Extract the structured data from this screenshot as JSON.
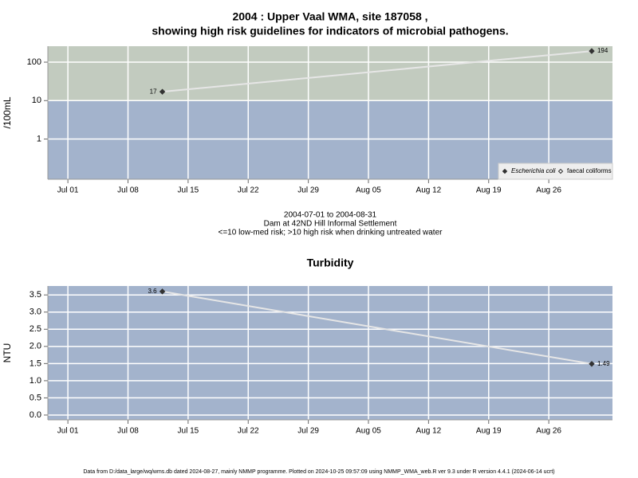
{
  "chart_data": [
    {
      "type": "line",
      "title": [
        "2004 : Upper Vaal WMA, site 187058 ,",
        "showing high risk guidelines for indicators of microbial pathogens."
      ],
      "ylabel": "/100mL",
      "log_scale": true,
      "ylim": [
        0.09,
        260
      ],
      "yticks": [
        1,
        10,
        100
      ],
      "xlim": [
        "2004-06-28T16:00",
        "2004-09-02T10:00"
      ],
      "xticks": [
        {
          "value": "2004-07-01",
          "label": "Jul 01"
        },
        {
          "value": "2004-07-08",
          "label": "Jul 08"
        },
        {
          "value": "2004-07-15",
          "label": "Jul 15"
        },
        {
          "value": "2004-07-22",
          "label": "Jul 22"
        },
        {
          "value": "2004-07-29",
          "label": "Jul 29"
        },
        {
          "value": "2004-08-05",
          "label": "Aug 05"
        },
        {
          "value": "2004-08-12",
          "label": "Aug 12"
        },
        {
          "value": "2004-08-19",
          "label": "Aug 19"
        },
        {
          "value": "2004-08-26",
          "label": "Aug 26"
        }
      ],
      "grid": true,
      "threshold": 10,
      "above_color": "#c2cbbf",
      "below_color": "#a3b3cc",
      "line_color": "#e6e6e6",
      "legend": "bottom-right",
      "series": [
        {
          "name": "Escherichia coli",
          "color": "#333333",
          "marker": "filled",
          "x": [
            "2004-07-12",
            "2004-08-31"
          ],
          "values": [
            17,
            194
          ]
        },
        {
          "name": "faecal coliforms",
          "color": "#333333",
          "marker": "open",
          "x": [],
          "values": []
        }
      ],
      "notes": [
        "2004-07-01 to 2004-08-31",
        "Dam at 42ND Hill Informal Settlement",
        "<=10 low-med risk; >10 high risk when drinking untreated water"
      ]
    },
    {
      "type": "line",
      "title": [
        "Turbidity"
      ],
      "ylabel": "NTU",
      "log_scale": false,
      "ylim": [
        -0.14,
        3.76
      ],
      "yticks": [
        {
          "value": 0,
          "label": "0.0"
        },
        0.5,
        {
          "value": 1,
          "label": "1.0"
        },
        1.5,
        {
          "value": 2,
          "label": "2.0"
        },
        2.5,
        {
          "value": 3,
          "label": "3.0"
        },
        3.5
      ],
      "xlim": [
        "2004-06-28T16:00",
        "2004-09-02T10:00"
      ],
      "xticks": [
        {
          "value": "2004-07-01",
          "label": "Jul 01"
        },
        {
          "value": "2004-07-08",
          "label": "Jul 08"
        },
        {
          "value": "2004-07-15",
          "label": "Jul 15"
        },
        {
          "value": "2004-07-22",
          "label": "Jul 22"
        },
        {
          "value": "2004-07-29",
          "label": "Jul 29"
        },
        {
          "value": "2004-08-05",
          "label": "Aug 05"
        },
        {
          "value": "2004-08-12",
          "label": "Aug 12"
        },
        {
          "value": "2004-08-19",
          "label": "Aug 19"
        },
        {
          "value": "2004-08-26",
          "label": "Aug 26"
        }
      ],
      "grid": true,
      "background": "#a3b3cc",
      "line_color": "#e6e6e6",
      "series": [
        {
          "color": "#333333",
          "marker": "filled",
          "x": [
            "2004-07-12",
            "2004-08-31"
          ],
          "values": [
            3.6,
            1.49
          ]
        }
      ]
    }
  ],
  "footer": "Data from D:/data_large/wq/wms.db dated 2024-08-27, mainly NMMP programme. Plotted on 2024-10-25 09:57:09 using NMMP_WMA_web.R ver 9.3 under R version 4.4.1 (2024-06-14 ucrt)"
}
